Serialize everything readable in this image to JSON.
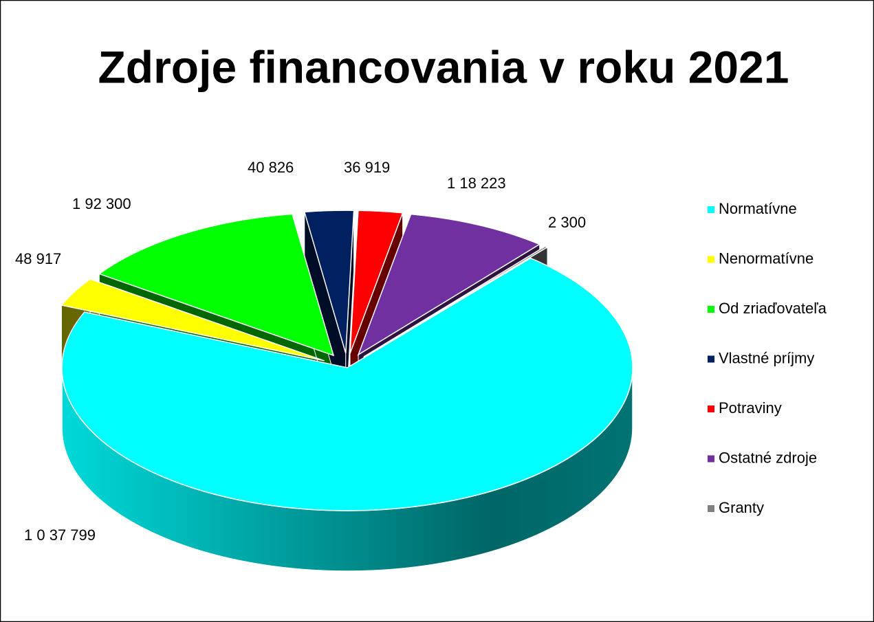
{
  "chart_data": {
    "type": "pie",
    "title": "Zdroje financovania v roku 2021",
    "categories": [
      "Normatívne",
      "Nenormatívne",
      "Od zriaďovateľa",
      "Vlastné príjmy",
      "Potraviny",
      "Ostatné zdroje",
      "Granty"
    ],
    "values": [
      1037799,
      48917,
      192300,
      40826,
      36919,
      118223,
      2300
    ],
    "value_labels": [
      "1 0 37 799",
      "48 917",
      "1 92 300",
      "40 826",
      "36 919",
      "1 18 223",
      "2 300"
    ],
    "colors": [
      "#00ffff",
      "#ffff00",
      "#00ff00",
      "#002060",
      "#ff0000",
      "#7030a0",
      "#808080"
    ],
    "legend": "right"
  }
}
